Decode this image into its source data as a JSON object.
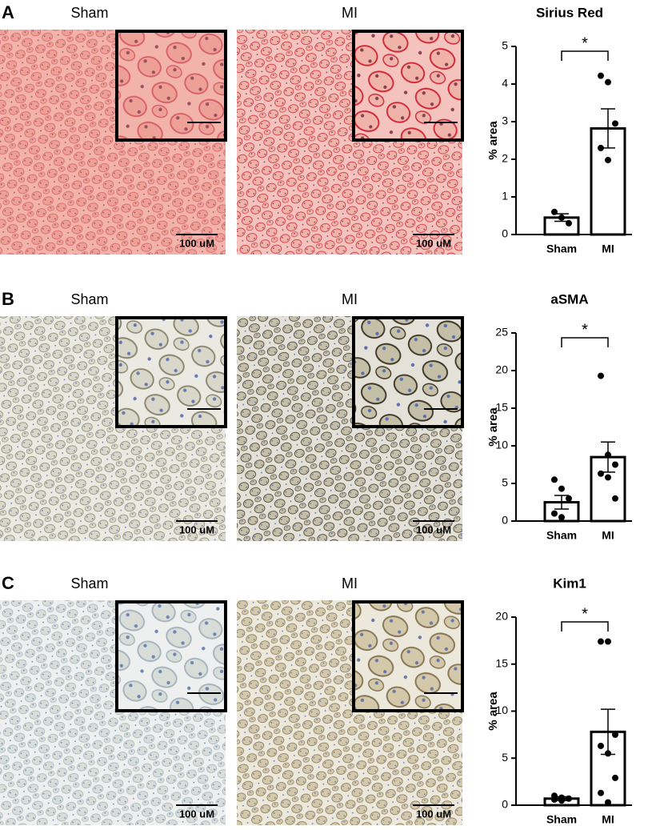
{
  "panels": [
    {
      "letter": "A",
      "images": [
        {
          "label": "Sham",
          "scale": "100 uM"
        },
        {
          "label": "MI",
          "scale": "100 uM"
        }
      ]
    },
    {
      "letter": "B",
      "images": [
        {
          "label": "Sham",
          "scale": "100 uM"
        },
        {
          "label": "MI",
          "scale": "100 uM"
        }
      ]
    },
    {
      "letter": "C",
      "images": [
        {
          "label": "Sham",
          "scale": "100 uM"
        },
        {
          "label": "MI",
          "scale": "100 uM"
        }
      ]
    }
  ],
  "chart_data": [
    {
      "type": "bar",
      "title": "Sirius Red",
      "ylabel": "% area",
      "categories": [
        "Sham",
        "MI"
      ],
      "values": [
        0.45,
        2.82
      ],
      "errors": [
        0.1,
        0.52
      ],
      "points": [
        [
          0.6,
          0.45,
          0.3
        ],
        [
          4.22,
          4.05,
          2.95,
          2.3,
          1.98
        ]
      ],
      "ylim": [
        0,
        5
      ],
      "yticks": [
        0,
        1,
        2,
        3,
        4,
        5
      ],
      "annotation": "*",
      "color": "#ffffff"
    },
    {
      "type": "bar",
      "title": "aSMA",
      "ylabel": "% area",
      "categories": [
        "Sham",
        "MI"
      ],
      "values": [
        2.5,
        8.5
      ],
      "errors": [
        0.9,
        2.0
      ],
      "points": [
        [
          5.5,
          4.3,
          3.0,
          1.0,
          0.5
        ],
        [
          19.3,
          8.8,
          7.5,
          6.3,
          5.8,
          3.0
        ]
      ],
      "ylim": [
        0,
        25
      ],
      "yticks": [
        0,
        5,
        10,
        15,
        20,
        25
      ],
      "annotation": "*",
      "color": "#ffffff"
    },
    {
      "type": "bar",
      "title": "Kim1",
      "ylabel": "% area",
      "categories": [
        "Sham",
        "MI"
      ],
      "values": [
        0.7,
        7.8
      ],
      "errors": [
        0.2,
        2.4
      ],
      "points": [
        [
          1.0,
          0.8,
          0.7,
          0.6,
          0.5
        ],
        [
          17.4,
          17.4,
          7.5,
          6.3,
          5.5,
          2.9,
          1.3,
          0.3
        ]
      ],
      "ylim": [
        0,
        20
      ],
      "yticks": [
        0,
        5,
        10,
        15,
        20
      ],
      "annotation": "*",
      "color": "#ffffff"
    }
  ]
}
